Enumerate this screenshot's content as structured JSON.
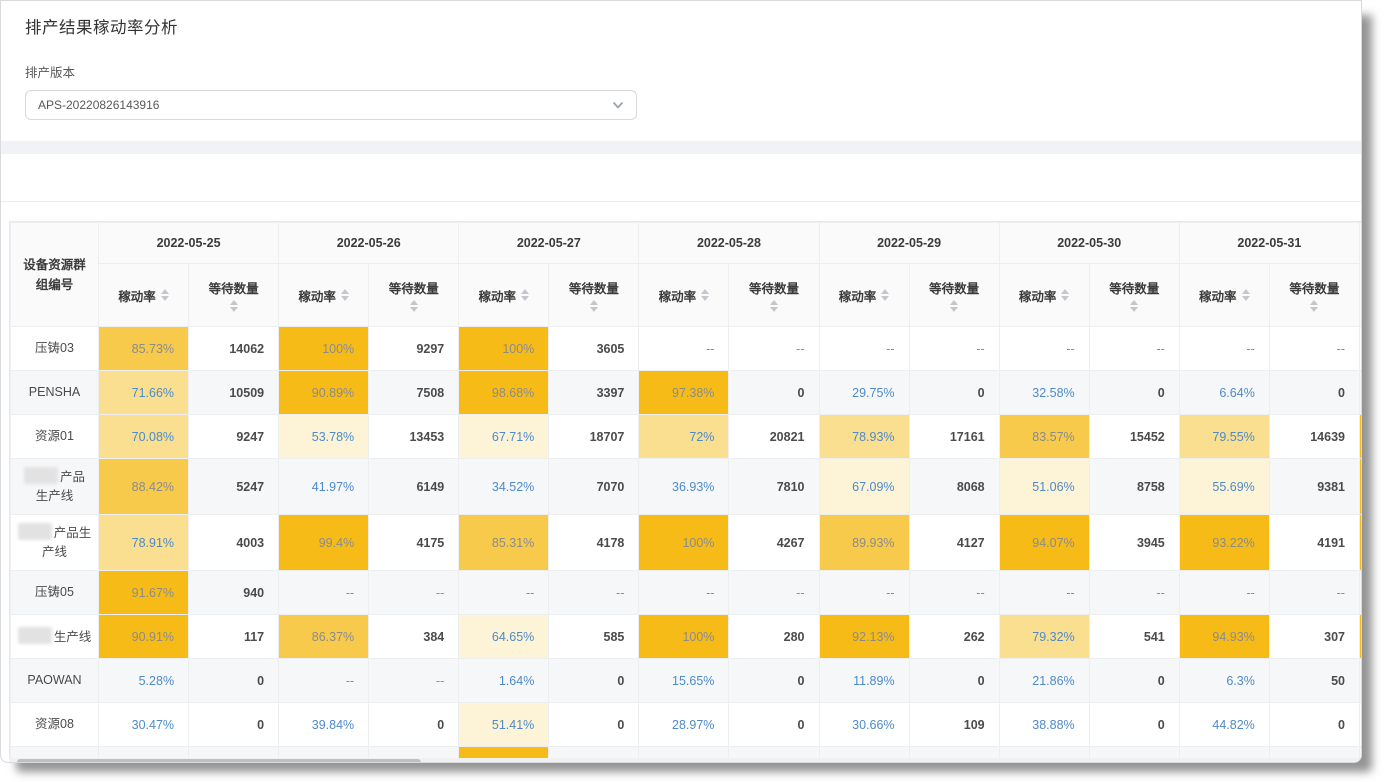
{
  "page": {
    "title": "排产结果稼动率分析"
  },
  "filter": {
    "label": "排产版本",
    "selected_value": "APS-20220826143916",
    "icon": "chevron-down"
  },
  "table": {
    "corner_header": "设备资源群组编号",
    "sub_headers": {
      "rate": "稼动率",
      "wait": "等待数量"
    },
    "sorter_icon": "sort-carets",
    "empty_placeholder": "--",
    "dates": [
      "2022-05-25",
      "2022-05-26",
      "2022-05-27",
      "2022-05-28",
      "2022-05-29",
      "2022-05-30",
      "2022-05-31"
    ],
    "heat_colors": {
      "b90": "#f7bb17",
      "b80": "#f8ca4b",
      "b70": "#fadf90",
      "b50": "#fdf3d6"
    },
    "rate_text_colors": {
      "blue": "#4e8ac8",
      "muted": "#8b8b8b"
    },
    "rows": [
      {
        "name": {
          "label": "压铸03"
        },
        "sliver": "none",
        "cells": [
          {
            "rate": "85.73%",
            "bg": "b80",
            "wait": "14062"
          },
          {
            "rate": "100%",
            "bg": "b90",
            "wait": "9297"
          },
          {
            "rate": "100%",
            "bg": "b90",
            "wait": "3605"
          },
          {
            "rate": "--",
            "bg": "none",
            "wait": "--"
          },
          {
            "rate": "--",
            "bg": "none",
            "wait": "--"
          },
          {
            "rate": "--",
            "bg": "none",
            "wait": "--"
          },
          {
            "rate": "--",
            "bg": "none",
            "wait": "--"
          }
        ]
      },
      {
        "name": {
          "label": "PENSHA"
        },
        "sliver": "none",
        "cells": [
          {
            "rate": "71.66%",
            "bg": "b70",
            "wait": "10509"
          },
          {
            "rate": "90.89%",
            "bg": "b90",
            "wait": "7508"
          },
          {
            "rate": "98.68%",
            "bg": "b90",
            "wait": "3397"
          },
          {
            "rate": "97.38%",
            "bg": "b90",
            "wait": "0"
          },
          {
            "rate": "29.75%",
            "bg": "none",
            "wait": "0"
          },
          {
            "rate": "32.58%",
            "bg": "none",
            "wait": "0"
          },
          {
            "rate": "6.64%",
            "bg": "none",
            "wait": "0"
          }
        ]
      },
      {
        "name": {
          "label": "资源01"
        },
        "sliver": "b90",
        "cells": [
          {
            "rate": "70.08%",
            "bg": "b70",
            "wait": "9247"
          },
          {
            "rate": "53.78%",
            "bg": "b50",
            "wait": "13453"
          },
          {
            "rate": "67.71%",
            "bg": "b50",
            "wait": "18707"
          },
          {
            "rate": "72%",
            "bg": "b70",
            "wait": "20821"
          },
          {
            "rate": "78.93%",
            "bg": "b70",
            "wait": "17161"
          },
          {
            "rate": "83.57%",
            "bg": "b80",
            "wait": "15452"
          },
          {
            "rate": "79.55%",
            "bg": "b70",
            "wait": "14639"
          }
        ]
      },
      {
        "name": {
          "redacted": true,
          "lines": [
            "产品",
            "生产线"
          ]
        },
        "sliver": "b90",
        "cells": [
          {
            "rate": "88.42%",
            "bg": "b80",
            "wait": "5247"
          },
          {
            "rate": "41.97%",
            "bg": "none",
            "wait": "6149"
          },
          {
            "rate": "34.52%",
            "bg": "none",
            "wait": "7070"
          },
          {
            "rate": "36.93%",
            "bg": "none",
            "wait": "7810"
          },
          {
            "rate": "67.09%",
            "bg": "b50",
            "wait": "8068"
          },
          {
            "rate": "51.06%",
            "bg": "b50",
            "wait": "8758"
          },
          {
            "rate": "55.69%",
            "bg": "b50",
            "wait": "9381"
          }
        ]
      },
      {
        "name": {
          "redacted": true,
          "lines": [
            "产品生",
            "产线"
          ]
        },
        "sliver": "b90",
        "cells": [
          {
            "rate": "78.91%",
            "bg": "b70",
            "wait": "4003"
          },
          {
            "rate": "99.4%",
            "bg": "b90",
            "wait": "4175"
          },
          {
            "rate": "85.31%",
            "bg": "b80",
            "wait": "4178"
          },
          {
            "rate": "100%",
            "bg": "b90",
            "wait": "4267"
          },
          {
            "rate": "89.93%",
            "bg": "b80",
            "wait": "4127"
          },
          {
            "rate": "94.07%",
            "bg": "b90",
            "wait": "3945"
          },
          {
            "rate": "93.22%",
            "bg": "b90",
            "wait": "4191"
          }
        ]
      },
      {
        "name": {
          "label": "压铸05"
        },
        "sliver": "none",
        "cells": [
          {
            "rate": "91.67%",
            "bg": "b90",
            "wait": "940"
          },
          {
            "rate": "--",
            "bg": "none",
            "wait": "--"
          },
          {
            "rate": "--",
            "bg": "none",
            "wait": "--"
          },
          {
            "rate": "--",
            "bg": "none",
            "wait": "--"
          },
          {
            "rate": "--",
            "bg": "none",
            "wait": "--"
          },
          {
            "rate": "--",
            "bg": "none",
            "wait": "--"
          },
          {
            "rate": "--",
            "bg": "none",
            "wait": "--"
          }
        ]
      },
      {
        "name": {
          "redacted": true,
          "lines": [
            "生产线"
          ]
        },
        "sliver": "b90",
        "cells": [
          {
            "rate": "90.91%",
            "bg": "b90",
            "wait": "117"
          },
          {
            "rate": "86.37%",
            "bg": "b80",
            "wait": "384"
          },
          {
            "rate": "64.65%",
            "bg": "b50",
            "wait": "585"
          },
          {
            "rate": "100%",
            "bg": "b90",
            "wait": "280"
          },
          {
            "rate": "92.13%",
            "bg": "b90",
            "wait": "262"
          },
          {
            "rate": "79.32%",
            "bg": "b70",
            "wait": "541"
          },
          {
            "rate": "94.93%",
            "bg": "b90",
            "wait": "307"
          }
        ]
      },
      {
        "name": {
          "label": "PAOWAN"
        },
        "sliver": "none",
        "cells": [
          {
            "rate": "5.28%",
            "bg": "none",
            "wait": "0"
          },
          {
            "rate": "--",
            "bg": "none",
            "wait": "--"
          },
          {
            "rate": "1.64%",
            "bg": "none",
            "wait": "0"
          },
          {
            "rate": "15.65%",
            "bg": "none",
            "wait": "0"
          },
          {
            "rate": "11.89%",
            "bg": "none",
            "wait": "0"
          },
          {
            "rate": "21.86%",
            "bg": "none",
            "wait": "0"
          },
          {
            "rate": "6.3%",
            "bg": "none",
            "wait": "50"
          }
        ]
      },
      {
        "name": {
          "label": "资源08"
        },
        "sliver": "none",
        "cells": [
          {
            "rate": "30.47%",
            "bg": "none",
            "wait": "0"
          },
          {
            "rate": "39.84%",
            "bg": "none",
            "wait": "0"
          },
          {
            "rate": "51.41%",
            "bg": "b50",
            "wait": "0"
          },
          {
            "rate": "28.97%",
            "bg": "none",
            "wait": "0"
          },
          {
            "rate": "30.66%",
            "bg": "none",
            "wait": "109"
          },
          {
            "rate": "38.88%",
            "bg": "none",
            "wait": "0"
          },
          {
            "rate": "44.82%",
            "bg": "none",
            "wait": "0"
          }
        ]
      },
      {
        "name": {
          "label": ""
        },
        "partial": true,
        "sliver": "none",
        "cells": [
          {
            "rate": "",
            "bg": "none",
            "wait": ""
          },
          {
            "rate": "",
            "bg": "none",
            "wait": ""
          },
          {
            "rate": "",
            "bg": "b90",
            "wait": ""
          },
          {
            "rate": "",
            "bg": "none",
            "wait": ""
          },
          {
            "rate": "",
            "bg": "none",
            "wait": ""
          },
          {
            "rate": "",
            "bg": "none",
            "wait": ""
          },
          {
            "rate": "",
            "bg": "none",
            "wait": ""
          }
        ]
      }
    ]
  }
}
